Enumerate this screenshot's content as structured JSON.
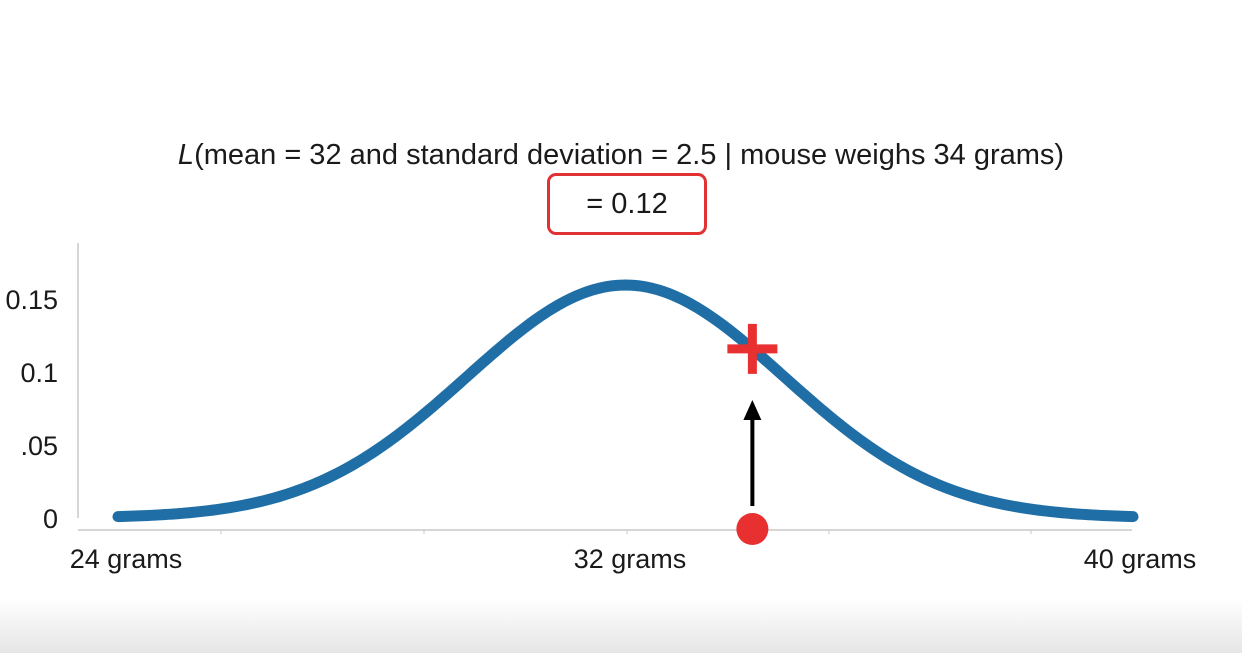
{
  "title": {
    "l_symbol": "L",
    "rest": "(mean = 32 and standard deviation = 2.5 | mouse weighs 34 grams)"
  },
  "likelihood_box": {
    "text": "= 0.12"
  },
  "colors": {
    "curve": "#1f6fa6",
    "highlight": "#e83030",
    "arrow": "#000000",
    "box_border": "#e03232"
  },
  "chart_data": {
    "type": "line",
    "title": "L(mean = 32 and standard deviation = 2.5 | mouse weighs 34 grams)",
    "xlabel": "",
    "ylabel": "",
    "x_tick_labels": [
      {
        "value": 24,
        "label": "24 grams"
      },
      {
        "value": 32,
        "label": "32 grams"
      },
      {
        "value": 40,
        "label": "40 grams"
      }
    ],
    "y_tick_labels": [
      {
        "value": 0,
        "label": "0"
      },
      {
        "value": 0.05,
        "label": ".05"
      },
      {
        "value": 0.1,
        "label": "0.1"
      },
      {
        "value": 0.15,
        "label": "0.15"
      }
    ],
    "xlim": [
      24,
      40
    ],
    "ylim": [
      0,
      0.19
    ],
    "distribution": {
      "kind": "normal",
      "mean": 32,
      "sd": 2.5
    },
    "observation": {
      "x": 34,
      "likelihood": 0.12,
      "label": "= 0.12"
    },
    "grid": false
  }
}
